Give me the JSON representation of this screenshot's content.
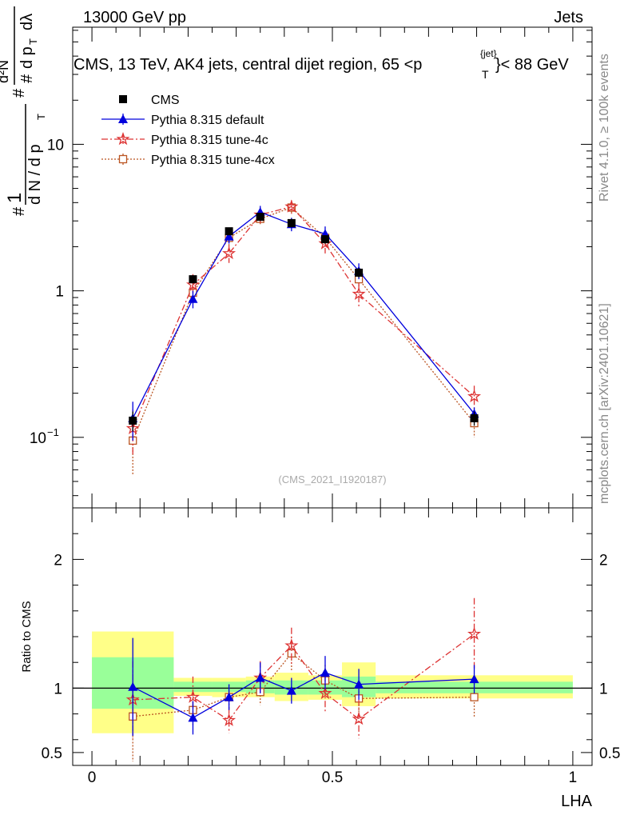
{
  "header": {
    "energy": "13000 GeV pp",
    "category": "Jets"
  },
  "side_labels": {
    "rivet": "Rivet 4.1.0, ≥ 100k events",
    "mcplots": "mcplots.cern.ch [arXiv:2401.10621]"
  },
  "colors": {
    "cms": "#000000",
    "default": "#0000dd",
    "tune4c": "#dd3333",
    "tune4cx": "#bb5522",
    "band_inner": "#99ff99",
    "band_outer": "#ffff88"
  },
  "chart_data": [
    {
      "type": "scatter",
      "scale": "log",
      "title": "CMS, 13 TeV, AK4 jets, central dijet region, 65 <p_T^{jet}> < 88 GeV",
      "title_parts": {
        "main": "CMS, 13 TeV, AK4 jets, central dijet region, 65 <",
        "p": "p",
        "sub": "T",
        "sup": "{jet}",
        "end": "}< 88 GeV"
      },
      "ylabel": "1/(dN/dp_T) d²N/dp_T dλ",
      "ylabel_parts": {
        "hash1": "#",
        "one": "1",
        "dN": "d N / d p",
        "T1": "T",
        "hash2": "#",
        "d2N": "d²N",
        "hash3": "#",
        "dp": "d p",
        "T2": "T",
        "dl": "dλ"
      },
      "ylim": [
        0.033,
        63
      ],
      "yticks": [
        {
          "value": 0.1,
          "label": "10",
          "exp": "−1"
        },
        {
          "value": 1,
          "label": "1"
        },
        {
          "value": 10,
          "label": "10"
        }
      ],
      "watermark": "(CMS_2021_I1920187)",
      "legend": [
        {
          "key": "cms",
          "label": "CMS"
        },
        {
          "key": "default",
          "label": "Pythia 8.315 default"
        },
        {
          "key": "tune4c",
          "label": "Pythia 8.315 tune-4c"
        },
        {
          "key": "tune4cx",
          "label": "Pythia 8.315 tune-4cx"
        }
      ],
      "x": [
        0.085,
        0.21,
        0.285,
        0.35,
        0.415,
        0.485,
        0.555,
        0.795
      ],
      "bins": [
        [
          0,
          0.17
        ],
        [
          0.17,
          0.25
        ],
        [
          0.25,
          0.32
        ],
        [
          0.32,
          0.38
        ],
        [
          0.38,
          0.45
        ],
        [
          0.45,
          0.52
        ],
        [
          0.52,
          0.59
        ],
        [
          0.59,
          1.0
        ]
      ],
      "series": [
        {
          "name": "CMS",
          "key": "cms",
          "values": [
            0.13,
            1.2,
            2.55,
            3.2,
            2.9,
            2.25,
            1.33,
            0.135
          ],
          "errors": [
            0.02,
            0.08,
            0.15,
            0.2,
            0.2,
            0.15,
            0.1,
            0.015
          ]
        },
        {
          "name": "Pythia 8.315 default",
          "key": "default",
          "values": [
            0.135,
            0.88,
            2.35,
            3.45,
            2.85,
            2.45,
            1.37,
            0.145
          ],
          "errors": [
            0.04,
            0.12,
            0.25,
            0.35,
            0.3,
            0.3,
            0.17,
            0.015
          ]
        },
        {
          "name": "Pythia 8.315 tune-4c",
          "key": "tune4c",
          "values": [
            0.115,
            1.1,
            1.8,
            3.3,
            3.75,
            2.1,
            0.95,
            0.19
          ],
          "errors": [
            0.04,
            0.2,
            0.25,
            0.4,
            0.4,
            0.3,
            0.18,
            0.035
          ]
        },
        {
          "name": "Pythia 8.315 tune-4cx",
          "key": "tune4cx",
          "values": [
            0.095,
            0.97,
            2.3,
            3.1,
            3.7,
            2.3,
            1.2,
            0.125
          ],
          "errors": [
            0.04,
            0.15,
            0.25,
            0.3,
            0.35,
            0.25,
            0.15,
            0.025
          ]
        }
      ]
    },
    {
      "type": "scatter",
      "ylabel": "Ratio to CMS",
      "xlabel": "LHA",
      "xlim": [
        -0.04,
        1.04
      ],
      "ylim": [
        0.4,
        2.4
      ],
      "xticks": [
        {
          "value": 0,
          "label": "0"
        },
        {
          "value": 0.5,
          "label": "0.5"
        },
        {
          "value": 1,
          "label": "1"
        }
      ],
      "yticks": [
        {
          "value": 0.5,
          "label": "0.5"
        },
        {
          "value": 1,
          "label": "1"
        },
        {
          "value": 2,
          "label": "2"
        }
      ],
      "bands": [
        {
          "lo": 0.0,
          "hi": 0.17,
          "inner": [
            0.84,
            1.24
          ],
          "outer": [
            0.65,
            1.44
          ]
        },
        {
          "lo": 0.17,
          "hi": 0.25,
          "inner": [
            0.97,
            1.05
          ],
          "outer": [
            0.94,
            1.08
          ]
        },
        {
          "lo": 0.25,
          "hi": 0.32,
          "inner": [
            0.97,
            1.05
          ],
          "outer": [
            0.93,
            1.08
          ]
        },
        {
          "lo": 0.32,
          "hi": 0.38,
          "inner": [
            0.96,
            1.06
          ],
          "outer": [
            0.93,
            1.09
          ]
        },
        {
          "lo": 0.38,
          "hi": 0.45,
          "inner": [
            0.95,
            1.06
          ],
          "outer": [
            0.9,
            1.12
          ]
        },
        {
          "lo": 0.45,
          "hi": 0.52,
          "inner": [
            0.95,
            1.06
          ],
          "outer": [
            0.91,
            1.1
          ]
        },
        {
          "lo": 0.52,
          "hi": 0.59,
          "inner": [
            0.93,
            1.09
          ],
          "outer": [
            0.86,
            1.2
          ]
        },
        {
          "lo": 0.59,
          "hi": 1.0,
          "inner": [
            0.96,
            1.05
          ],
          "outer": [
            0.92,
            1.1
          ]
        }
      ],
      "series": [
        {
          "name": "Pythia 8.315 default",
          "key": "default",
          "values": [
            1.01,
            0.77,
            0.93,
            1.08,
            0.98,
            1.12,
            1.03,
            1.07
          ],
          "errors": [
            0.38,
            0.13,
            0.1,
            0.12,
            0.1,
            0.13,
            0.12,
            0.11
          ]
        },
        {
          "name": "Pythia 8.315 tune-4c",
          "key": "tune4c",
          "values": [
            0.91,
            0.93,
            0.75,
            1.08,
            1.33,
            0.96,
            0.76,
            1.42
          ],
          "errors": [
            0.3,
            0.16,
            0.1,
            0.13,
            0.14,
            0.14,
            0.15,
            0.28
          ]
        },
        {
          "name": "Pythia 8.315 tune-4cx",
          "key": "tune4cx",
          "values": [
            0.78,
            0.83,
            0.93,
            0.97,
            1.27,
            1.06,
            0.92,
            0.93
          ],
          "errors": [
            0.35,
            0.12,
            0.1,
            0.1,
            0.13,
            0.12,
            0.13,
            0.16
          ]
        }
      ]
    }
  ]
}
